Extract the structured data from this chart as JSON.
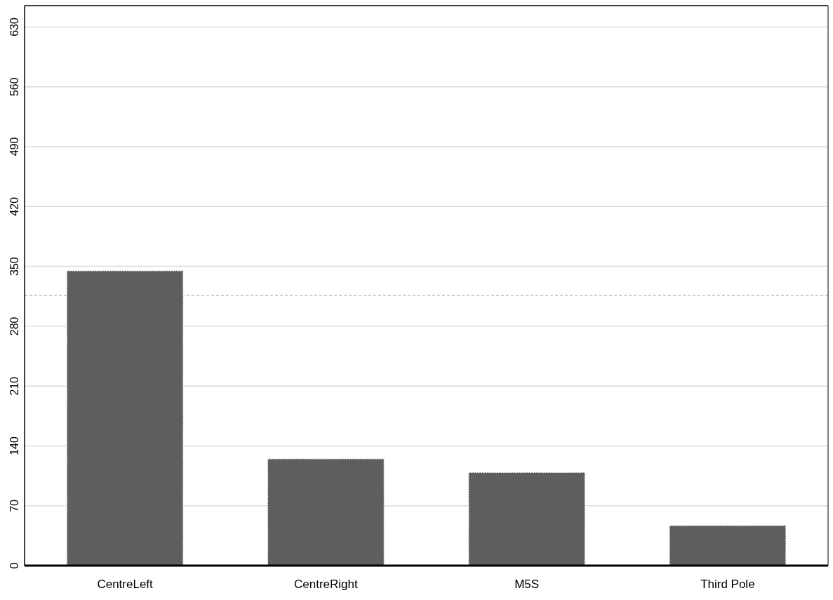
{
  "chart_data": {
    "type": "bar",
    "categories": [
      "CentreLeft",
      "CentreRight",
      "M5S",
      "Third Pole"
    ],
    "values": [
      345,
      125,
      109,
      47
    ],
    "color": "#5e5e5e",
    "ylim": [
      0,
      655
    ],
    "yticks": [
      0,
      70,
      140,
      210,
      280,
      350,
      420,
      490,
      560,
      630
    ],
    "grid": "y",
    "ref_lines": [
      {
        "axis": "y",
        "value": 316,
        "color": "#a0a0a0",
        "line_style": "dashed"
      }
    ]
  }
}
